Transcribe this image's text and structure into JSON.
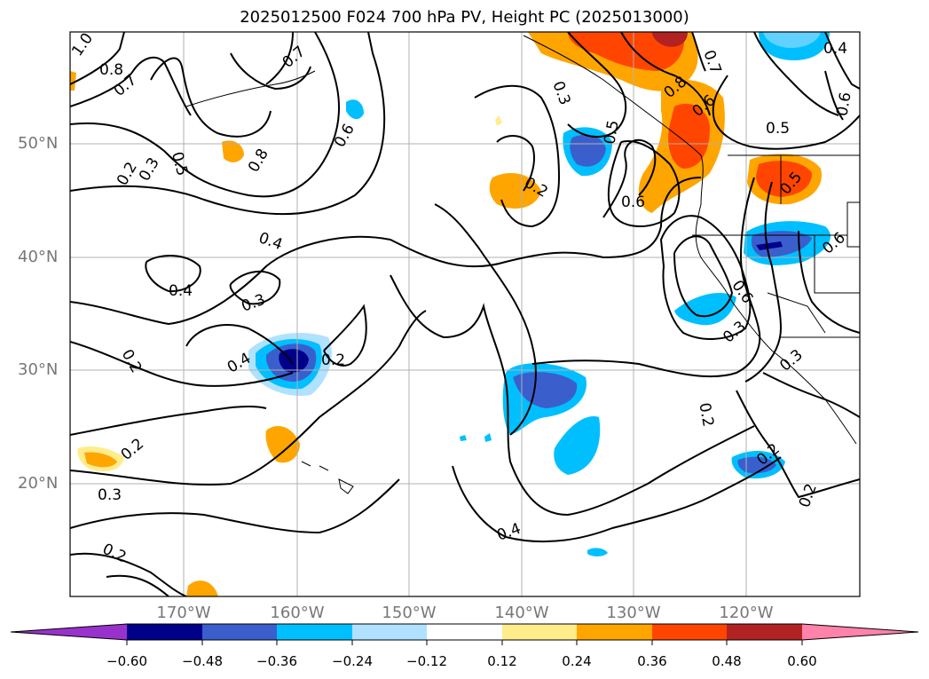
{
  "title": "2025012500 F024 700 hPa PV, Height PC (2025013000)",
  "latitude_labels": [
    "50°N",
    "40°N",
    "30°N",
    "20°N"
  ],
  "longitude_labels": [
    "170°W",
    "160°W",
    "150°W",
    "140°W",
    "130°W",
    "120°W"
  ],
  "colorbar": {
    "ticks": [
      "−0.60",
      "−0.48",
      "−0.36",
      "−0.24",
      "−0.12",
      "0.12",
      "0.24",
      "0.36",
      "0.48",
      "0.60"
    ],
    "colors": [
      "#9932cc",
      "#00008b",
      "#3a5fcd",
      "#00bfff",
      "#b0e2ff",
      "#ffffff",
      "#ffec8b",
      "#ffa500",
      "#ff4500",
      "#b22222",
      "#ff82ab"
    ]
  },
  "contour_labels": [
    "1.0",
    "0.8",
    "0.7",
    "0.7",
    "0.6",
    "0.8",
    "0.5",
    "0.2",
    "0.3",
    "0.4",
    "0.4",
    "0.3",
    "0.4",
    "0.2",
    "0.2",
    "0.2",
    "0.3",
    "0.2",
    "0.3",
    "0.5",
    "0.2",
    "0.6",
    "0.7",
    "0.8",
    "0.6",
    "0.4",
    "0.6",
    "0.5",
    "0.6",
    "0.5",
    "0.6",
    "0.3",
    "0.3",
    "0.2",
    "0.2",
    "0.2",
    "0.4"
  ]
}
